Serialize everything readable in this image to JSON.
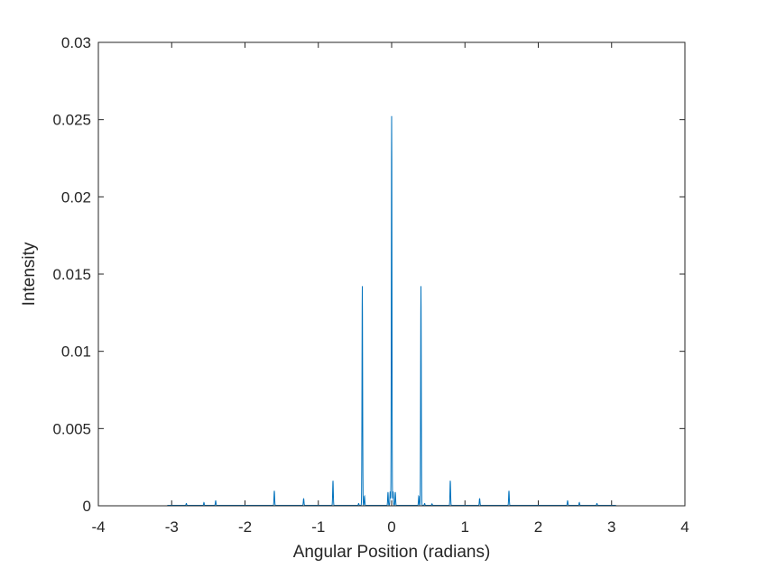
{
  "chart_data": {
    "type": "line",
    "title": "",
    "xlabel": "Angular Position (radians)",
    "ylabel": "Intensity",
    "xlim": [
      -4,
      4
    ],
    "ylim": [
      0,
      0.03
    ],
    "x_ticks": [
      -4,
      -3,
      -2,
      -1,
      0,
      1,
      2,
      3,
      4
    ],
    "x_tick_labels": [
      "-4",
      "-3",
      "-2",
      "-1",
      "0",
      "1",
      "2",
      "3",
      "4"
    ],
    "y_ticks": [
      0,
      0.005,
      0.01,
      0.015,
      0.02,
      0.025,
      0.03
    ],
    "y_tick_labels": [
      "0",
      "0.005",
      "0.01",
      "0.015",
      "0.02",
      "0.025",
      "0.03"
    ],
    "grid": false,
    "box": true,
    "line_color": "#0072BD",
    "data_range_x": [
      -3.06,
      3.06
    ],
    "series": [
      {
        "peaks": [
          {
            "x": -2.8,
            "y": 0.00012
          },
          {
            "x": -2.56,
            "y": 0.00018
          },
          {
            "x": -2.4,
            "y": 0.0003
          },
          {
            "x": -1.6,
            "y": 0.00095
          },
          {
            "x": -1.2,
            "y": 0.00045
          },
          {
            "x": -0.8,
            "y": 0.0016
          },
          {
            "x": -0.45,
            "y": 0.00012
          },
          {
            "x": -0.4,
            "y": 0.0142
          },
          {
            "x": -0.37,
            "y": 0.0006
          },
          {
            "x": -0.05,
            "y": 0.00085
          },
          {
            "x": -0.02,
            "y": 0.0009
          },
          {
            "x": 0.0,
            "y": 0.0252
          },
          {
            "x": 0.02,
            "y": 0.0009
          },
          {
            "x": 0.05,
            "y": 0.00085
          },
          {
            "x": 0.37,
            "y": 0.0006
          },
          {
            "x": 0.4,
            "y": 0.0142
          },
          {
            "x": 0.45,
            "y": 0.00012
          },
          {
            "x": 0.55,
            "y": 0.0001
          },
          {
            "x": 0.8,
            "y": 0.0016
          },
          {
            "x": 1.2,
            "y": 0.00045
          },
          {
            "x": 1.6,
            "y": 0.00095
          },
          {
            "x": 2.4,
            "y": 0.0003
          },
          {
            "x": 2.56,
            "y": 0.00018
          },
          {
            "x": 2.8,
            "y": 0.00012
          }
        ]
      }
    ]
  }
}
